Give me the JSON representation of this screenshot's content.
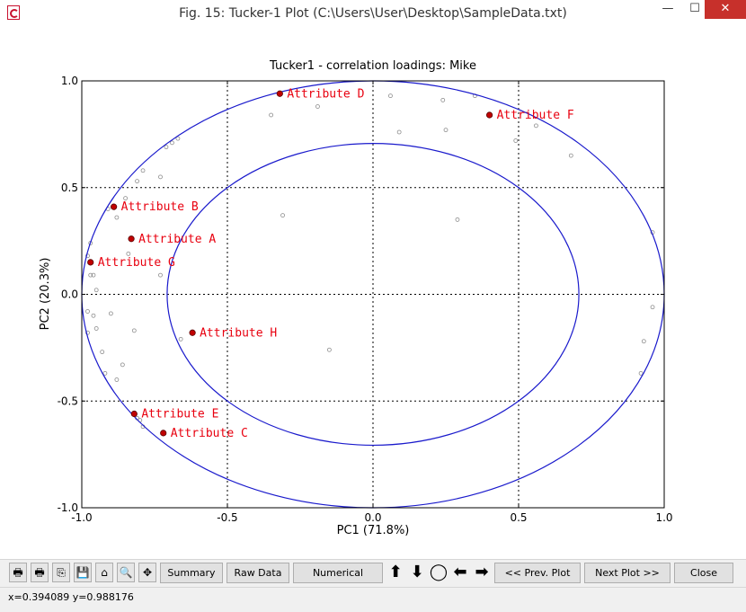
{
  "window": {
    "title": "Fig. 15: Tucker-1 Plot (C:\\Users\\User\\Desktop\\SampleData.txt)",
    "min_glyph": "—",
    "max_glyph": "☐",
    "close_glyph": "✕"
  },
  "chart_data": {
    "type": "scatter",
    "title": "Tucker1 - correlation loadings: Mike",
    "xlabel": "PC1 (71.8%)",
    "ylabel": "PC2 (20.3%)",
    "xlim": [
      -1.0,
      1.0
    ],
    "ylim": [
      -1.0,
      1.0
    ],
    "xticks": [
      -1.0,
      -0.5,
      0.0,
      0.5,
      1.0
    ],
    "yticks": [
      -1.0,
      -0.5,
      0.0,
      0.5,
      1.0
    ],
    "xtick_labels": [
      "-1.0",
      "-0.5",
      "0.0",
      "0.5",
      "1.0"
    ],
    "ytick_labels": [
      "-1.0",
      "-0.5",
      "0.0",
      "0.5",
      "1.0"
    ],
    "grid": true,
    "ellipses_radius": [
      1.0,
      0.707
    ],
    "ellipse_color": "#1a1acc",
    "label_color": "#e8000f",
    "point_color": "#c00000",
    "background_point_color": "#8c8c8c",
    "attributes": [
      {
        "label": "Attribute A",
        "x": -0.83,
        "y": 0.26
      },
      {
        "label": "Attribute B",
        "x": -0.89,
        "y": 0.41
      },
      {
        "label": "Attribute C",
        "x": -0.72,
        "y": -0.65
      },
      {
        "label": "Attribute D",
        "x": -0.32,
        "y": 0.94
      },
      {
        "label": "Attribute E",
        "x": -0.82,
        "y": -0.56
      },
      {
        "label": "Attribute F",
        "x": 0.4,
        "y": 0.84
      },
      {
        "label": "Attribute G",
        "x": -0.97,
        "y": 0.15
      },
      {
        "label": "Attribute H",
        "x": -0.62,
        "y": -0.18
      }
    ],
    "background_points": [
      [
        -0.98,
        0.18
      ],
      [
        -0.97,
        0.24
      ],
      [
        -0.96,
        0.09
      ],
      [
        -0.97,
        0.09
      ],
      [
        -0.91,
        0.4
      ],
      [
        -0.88,
        0.36
      ],
      [
        -0.85,
        0.45
      ],
      [
        -0.79,
        0.58
      ],
      [
        -0.81,
        0.53
      ],
      [
        -0.73,
        0.55
      ],
      [
        -0.71,
        0.69
      ],
      [
        -0.69,
        0.71
      ],
      [
        -0.67,
        0.73
      ],
      [
        -0.84,
        0.19
      ],
      [
        -0.73,
        0.09
      ],
      [
        -0.95,
        0.02
      ],
      [
        -0.98,
        -0.08
      ],
      [
        -0.96,
        -0.1
      ],
      [
        -0.95,
        -0.16
      ],
      [
        -0.98,
        -0.18
      ],
      [
        -0.9,
        -0.09
      ],
      [
        -0.82,
        -0.17
      ],
      [
        -0.93,
        -0.27
      ],
      [
        -0.86,
        -0.33
      ],
      [
        -0.92,
        -0.37
      ],
      [
        -0.88,
        -0.4
      ],
      [
        -0.81,
        -0.58
      ],
      [
        -0.8,
        -0.59
      ],
      [
        -0.79,
        -0.62
      ],
      [
        -0.66,
        -0.21
      ],
      [
        -0.35,
        0.84
      ],
      [
        -0.19,
        0.88
      ],
      [
        0.06,
        0.93
      ],
      [
        0.09,
        0.76
      ],
      [
        0.24,
        0.91
      ],
      [
        0.25,
        0.77
      ],
      [
        0.35,
        0.93
      ],
      [
        0.49,
        0.72
      ],
      [
        0.56,
        0.79
      ],
      [
        0.68,
        0.65
      ],
      [
        0.29,
        0.35
      ],
      [
        -0.31,
        0.37
      ],
      [
        -0.15,
        -0.26
      ],
      [
        0.96,
        0.29
      ],
      [
        0.96,
        -0.06
      ],
      [
        0.93,
        -0.22
      ],
      [
        0.92,
        -0.37
      ]
    ]
  },
  "toolbar": {
    "icons": [
      {
        "name": "print-icon",
        "glyph": "🖶"
      },
      {
        "name": "print-preview-icon",
        "glyph": "🖶"
      },
      {
        "name": "copy-icon",
        "glyph": "⎘"
      },
      {
        "name": "save-icon",
        "glyph": "💾"
      },
      {
        "name": "home-icon",
        "glyph": "⌂"
      },
      {
        "name": "zoom-icon",
        "glyph": "🔍"
      },
      {
        "name": "pan-icon",
        "glyph": "✥"
      }
    ],
    "summary": "Summary",
    "raw_data": "Raw Data",
    "numerical_results": "Numerical Results",
    "arrow_up": "⬆",
    "arrow_down": "⬇",
    "circle": "◯",
    "arrow_left": "⬅",
    "arrow_right": "➡",
    "prev_plot": "<< Prev. Plot",
    "next_plot": "Next Plot >>",
    "close": "Close"
  },
  "status": {
    "coords": "x=0.394089  y=0.988176"
  }
}
